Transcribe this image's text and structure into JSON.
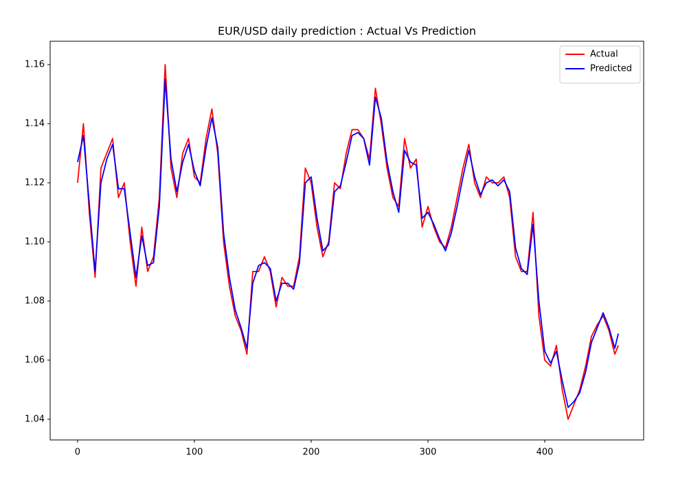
{
  "chart_data": {
    "type": "line",
    "title": "EUR/USD daily prediction : Actual Vs Prediction",
    "x": [
      0,
      5,
      10,
      15,
      20,
      25,
      30,
      35,
      40,
      45,
      50,
      55,
      60,
      65,
      70,
      75,
      80,
      85,
      90,
      95,
      100,
      105,
      110,
      115,
      120,
      125,
      130,
      135,
      140,
      145,
      150,
      155,
      160,
      165,
      170,
      175,
      180,
      185,
      190,
      195,
      200,
      205,
      210,
      215,
      220,
      225,
      230,
      235,
      240,
      245,
      250,
      255,
      260,
      265,
      270,
      275,
      280,
      285,
      290,
      295,
      300,
      305,
      310,
      315,
      320,
      325,
      330,
      335,
      340,
      345,
      350,
      355,
      360,
      365,
      370,
      375,
      380,
      385,
      390,
      395,
      400,
      405,
      410,
      415,
      420,
      425,
      430,
      435,
      440,
      445,
      450,
      455,
      460,
      463
    ],
    "series": [
      {
        "name": "Actual",
        "color": "#ff0000",
        "values": [
          1.12,
          1.14,
          1.11,
          1.088,
          1.125,
          1.13,
          1.135,
          1.115,
          1.12,
          1.1,
          1.085,
          1.105,
          1.09,
          1.095,
          1.115,
          1.16,
          1.125,
          1.115,
          1.13,
          1.135,
          1.122,
          1.12,
          1.135,
          1.145,
          1.13,
          1.1,
          1.085,
          1.075,
          1.07,
          1.062,
          1.09,
          1.09,
          1.095,
          1.09,
          1.078,
          1.088,
          1.085,
          1.085,
          1.095,
          1.125,
          1.12,
          1.105,
          1.095,
          1.1,
          1.12,
          1.118,
          1.13,
          1.138,
          1.138,
          1.135,
          1.128,
          1.152,
          1.14,
          1.125,
          1.115,
          1.112,
          1.135,
          1.125,
          1.128,
          1.105,
          1.112,
          1.105,
          1.1,
          1.098,
          1.105,
          1.115,
          1.125,
          1.133,
          1.12,
          1.115,
          1.122,
          1.12,
          1.12,
          1.122,
          1.115,
          1.095,
          1.09,
          1.09,
          1.11,
          1.075,
          1.06,
          1.058,
          1.065,
          1.05,
          1.04,
          1.045,
          1.05,
          1.058,
          1.068,
          1.072,
          1.075,
          1.07,
          1.062,
          1.065
        ]
      },
      {
        "name": "Predicted",
        "color": "#0000ff",
        "values": [
          1.127,
          1.136,
          1.113,
          1.09,
          1.12,
          1.128,
          1.133,
          1.118,
          1.118,
          1.103,
          1.088,
          1.102,
          1.092,
          1.093,
          1.112,
          1.155,
          1.128,
          1.117,
          1.127,
          1.133,
          1.124,
          1.119,
          1.132,
          1.142,
          1.132,
          1.103,
          1.088,
          1.077,
          1.071,
          1.064,
          1.086,
          1.092,
          1.093,
          1.091,
          1.08,
          1.086,
          1.086,
          1.084,
          1.093,
          1.12,
          1.122,
          1.108,
          1.097,
          1.099,
          1.117,
          1.119,
          1.127,
          1.136,
          1.137,
          1.135,
          1.126,
          1.149,
          1.142,
          1.127,
          1.117,
          1.11,
          1.131,
          1.127,
          1.126,
          1.108,
          1.11,
          1.106,
          1.101,
          1.097,
          1.103,
          1.112,
          1.122,
          1.131,
          1.122,
          1.116,
          1.12,
          1.121,
          1.119,
          1.121,
          1.117,
          1.098,
          1.091,
          1.089,
          1.106,
          1.08,
          1.063,
          1.059,
          1.063,
          1.053,
          1.044,
          1.046,
          1.049,
          1.056,
          1.066,
          1.071,
          1.076,
          1.071,
          1.064,
          1.069
        ]
      }
    ],
    "xlim": [
      -23.5,
      484.7
    ],
    "xticks": [
      0,
      100,
      200,
      300,
      400
    ],
    "ylim": [
      1.033,
      1.1679
    ],
    "yticks": [
      1.04,
      1.06,
      1.08,
      {
        "value": 1.1,
        "label": "1.10"
      },
      1.12,
      1.14,
      1.16
    ],
    "legend": "upper right"
  }
}
